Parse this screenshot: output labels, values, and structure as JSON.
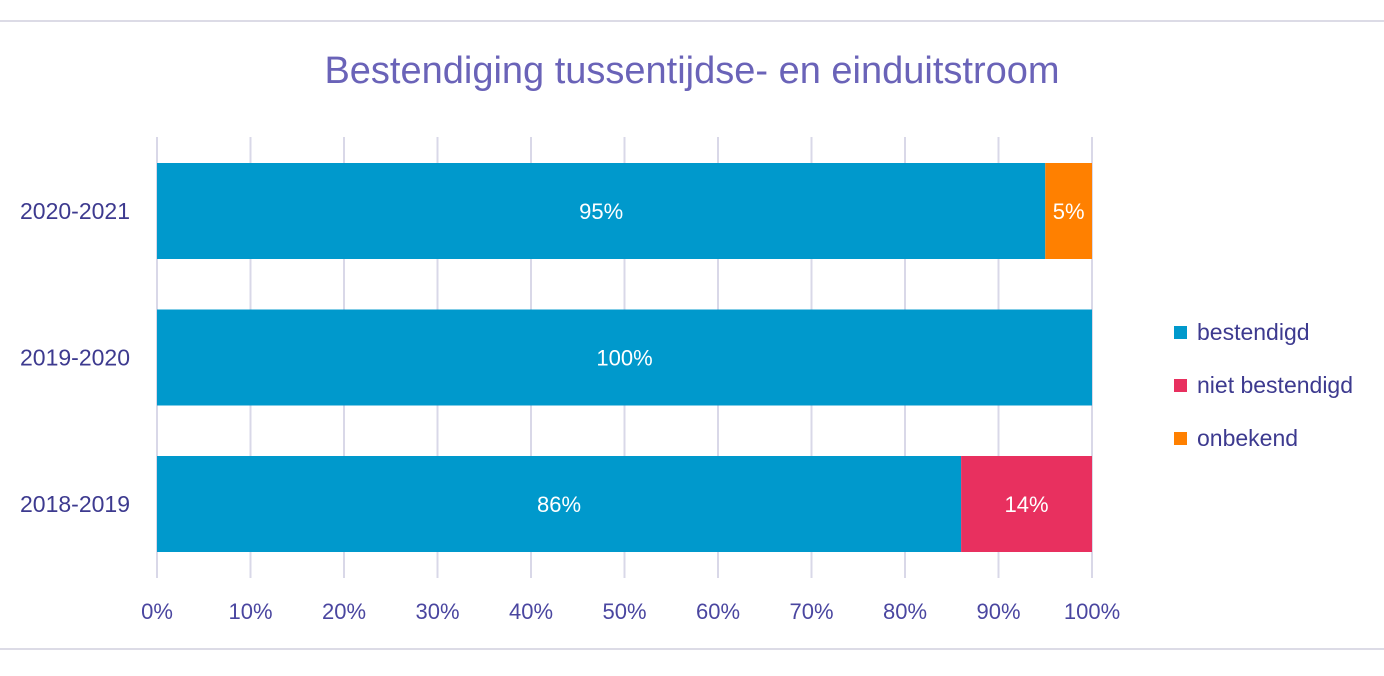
{
  "chart_data": {
    "type": "bar",
    "orientation": "horizontal",
    "stacked": true,
    "title": "Bestendiging tussentijdse- en einduitstroom",
    "categories": [
      "2020-2021",
      "2019-2020",
      "2018-2019"
    ],
    "series": [
      {
        "name": "bestendigd",
        "color": "#0099cc",
        "values": [
          95,
          100,
          86
        ],
        "labels": [
          "95%",
          "100%",
          "86%"
        ]
      },
      {
        "name": "niet bestendigd",
        "color": "#e8305f",
        "values": [
          0,
          0,
          14
        ],
        "labels": [
          "",
          "",
          "14%"
        ]
      },
      {
        "name": "onbekend",
        "color": "#ff8000",
        "values": [
          5,
          0,
          0
        ],
        "labels": [
          "5%",
          "",
          ""
        ]
      }
    ],
    "xlim": [
      0,
      100
    ],
    "xticks": [
      0,
      10,
      20,
      30,
      40,
      50,
      60,
      70,
      80,
      90,
      100
    ],
    "xtick_labels": [
      "0%",
      "10%",
      "20%",
      "30%",
      "40%",
      "50%",
      "60%",
      "70%",
      "80%",
      "90%",
      "100%"
    ],
    "grid": true,
    "legend_position": "right"
  }
}
